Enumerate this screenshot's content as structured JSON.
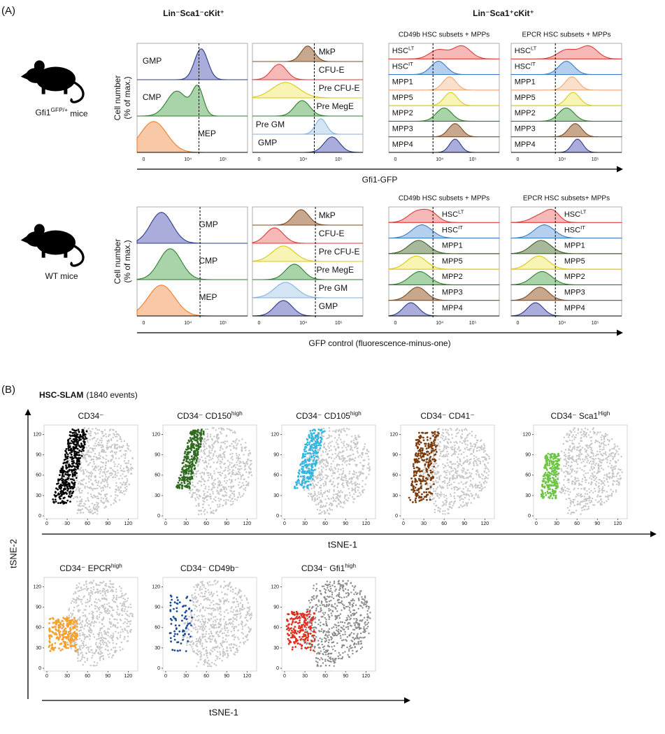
{
  "panel_a": {
    "label": "(A)",
    "group_headers": [
      "Lin⁻Sca1⁻cKit⁺",
      "Lin⁻Sca1⁺cKit⁺"
    ],
    "x_tick_labels": [
      "0",
      "10⁴",
      "10⁵"
    ],
    "rows": [
      {
        "mouse_label": {
          "base": "Gfi1",
          "sup": "GFP/+",
          "rest": " mice"
        },
        "y_axis_label": [
          "Cell number",
          "(% of max.)"
        ],
        "x_axis_label": "Gfi1-GFP",
        "panels": [
          {
            "populations": [
              "GMP",
              "CMP",
              "MEP"
            ]
          },
          {
            "populations": [
              "MkP",
              "CFU-E",
              "Pre CFU-E",
              "Pre MegE",
              "Pre GM",
              "GMP"
            ]
          },
          {
            "title": "CD49b HSC subsets + MPPs",
            "populations": [
              {
                "base": "HSC",
                "sup": "LT"
              },
              {
                "base": "HSC",
                "sup": "IT"
              },
              "MPP1",
              "MPP5",
              "MPP2",
              "MPP3",
              "MPP4"
            ]
          },
          {
            "title": "EPCR HSC subsets + MPPs",
            "populations": [
              {
                "base": "HSC",
                "sup": "LT"
              },
              {
                "base": "HSC",
                "sup": "IT"
              },
              "MPP1",
              "MPP5",
              "MPP2",
              "MPP3",
              "MPP4"
            ]
          }
        ]
      },
      {
        "mouse_label": "WT mice",
        "y_axis_label": [
          "Cell number",
          "(% of max.)"
        ],
        "x_axis_label": "GFP control (fluorescence-minus-one)",
        "panels": [
          {
            "populations": [
              "GMP",
              "CMP",
              "MEP"
            ]
          },
          {
            "populations": [
              "MkP",
              "CFU-E",
              "Pre CFU-E",
              "Pre MegE",
              "Pre GM",
              "GMP"
            ]
          },
          {
            "title": "CD49b HSC subsets + MPPs",
            "populations": [
              {
                "base": "HSC",
                "sup": "LT"
              },
              {
                "base": "HSC",
                "sup": "IT"
              },
              "MPP1",
              "MPP5",
              "MPP2",
              "MPP3",
              "MPP4"
            ]
          },
          {
            "title": "EPCR HSC subsets+ MPPs",
            "populations": [
              {
                "base": "HSC",
                "sup": "LT"
              },
              {
                "base": "HSC",
                "sup": "IT"
              },
              "MPP1",
              "MPP5",
              "MPP2",
              "MPP3",
              "MPP4"
            ]
          }
        ]
      }
    ]
  },
  "panel_b": {
    "label": "(B)",
    "title": "HSC-SLAM",
    "subtitle": "(1840 events)",
    "x_axis_label": "tSNE-1",
    "y_axis_label": "tSNE-2",
    "xlim": [
      0,
      130
    ],
    "ylim": [
      0,
      130
    ],
    "xticks": [
      0,
      30,
      60,
      90,
      120
    ],
    "yticks": [
      0,
      30,
      60,
      90,
      120
    ],
    "plots": [
      {
        "title": "CD34⁻"
      },
      {
        "title": {
          "base": "CD34⁻ CD150",
          "sup": "high"
        }
      },
      {
        "title": {
          "base": "CD34⁻ CD105",
          "sup": "high"
        }
      },
      {
        "title": "CD34⁻ CD41⁻"
      },
      {
        "title": {
          "base": "CD34⁻ Sca1",
          "sup": "High"
        }
      },
      {
        "title": {
          "base": "CD34⁻ EPCR",
          "sup": "high"
        }
      },
      {
        "title": "CD34⁻ CD49b⁻"
      },
      {
        "title": {
          "base": "CD34⁻ Gfi1",
          "sup": "high"
        }
      }
    ]
  }
}
